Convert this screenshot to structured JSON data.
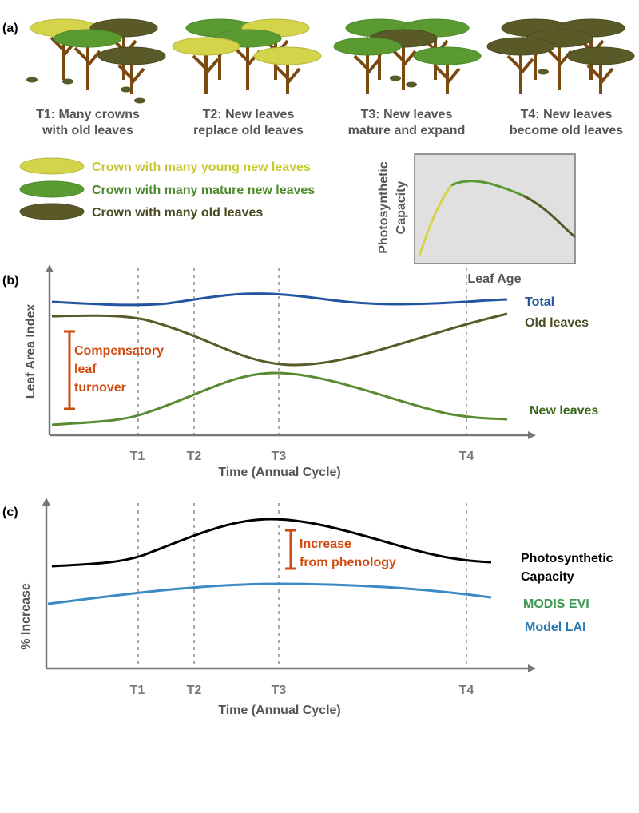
{
  "panel_a": {
    "label": "(a)",
    "stages": [
      {
        "lines": [
          "T1: Many crowns",
          "with old leaves"
        ]
      },
      {
        "lines": [
          "T2: New leaves",
          "replace old leaves"
        ]
      },
      {
        "lines": [
          "T3: New leaves",
          "mature and expand"
        ]
      },
      {
        "lines": [
          "T4: New leaves",
          "become old leaves"
        ]
      }
    ],
    "legend": [
      "Crown with many young new leaves",
      "Crown with many mature new leaves",
      "Crown with many old leaves"
    ],
    "inset": {
      "y_label": [
        "Photosynthetic",
        "Capacity"
      ],
      "x_label": "Leaf Age"
    }
  },
  "panel_b": {
    "label": "(b)",
    "y_label": "Leaf Area Index",
    "x_label": "Time (Annual Cycle)",
    "ticks": [
      "T1",
      "T2",
      "T3",
      "T4"
    ],
    "curves": [
      "Total",
      "Old leaves",
      "New leaves"
    ],
    "annotation": [
      "Compensatory",
      "leaf",
      "turnover"
    ]
  },
  "panel_c": {
    "label": "(c)",
    "y_label": "% Increase",
    "x_label": "Time (Annual Cycle)",
    "ticks": [
      "T1",
      "T2",
      "T3",
      "T4"
    ],
    "curves": [
      [
        "Photosynthetic",
        "Capacity"
      ],
      "MODIS EVI",
      "Model LAI"
    ],
    "annotation": [
      "Increase",
      "from phenology"
    ]
  }
}
